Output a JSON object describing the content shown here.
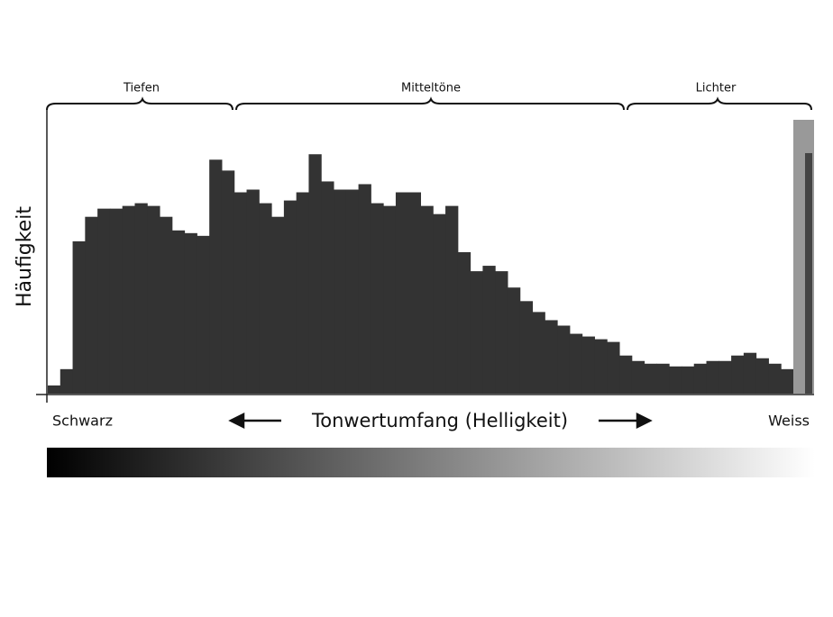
{
  "chart_data": {
    "type": "histogram",
    "y_label": "Häufigkeit",
    "x_label": "Tonwertumfang (Helligkeit)",
    "x_start_label": "Schwarz",
    "x_end_label": "Weiss",
    "regions": [
      "Tiefen",
      "Mitteltöne",
      "Lichter"
    ],
    "color": "#333333",
    "ylim": [
      0,
      100
    ],
    "values": [
      3,
      9,
      56,
      65,
      68,
      68,
      69,
      70,
      69,
      65,
      60,
      59,
      58,
      86,
      82,
      74,
      75,
      70,
      65,
      71,
      74,
      88,
      78,
      75,
      75,
      77,
      70,
      69,
      74,
      74,
      69,
      66,
      69,
      52,
      45,
      47,
      45,
      39,
      34,
      30,
      27,
      25,
      22,
      21,
      20,
      19,
      14,
      12,
      11,
      11,
      10,
      10,
      11,
      12,
      12,
      14,
      15,
      13,
      11,
      9
    ]
  }
}
